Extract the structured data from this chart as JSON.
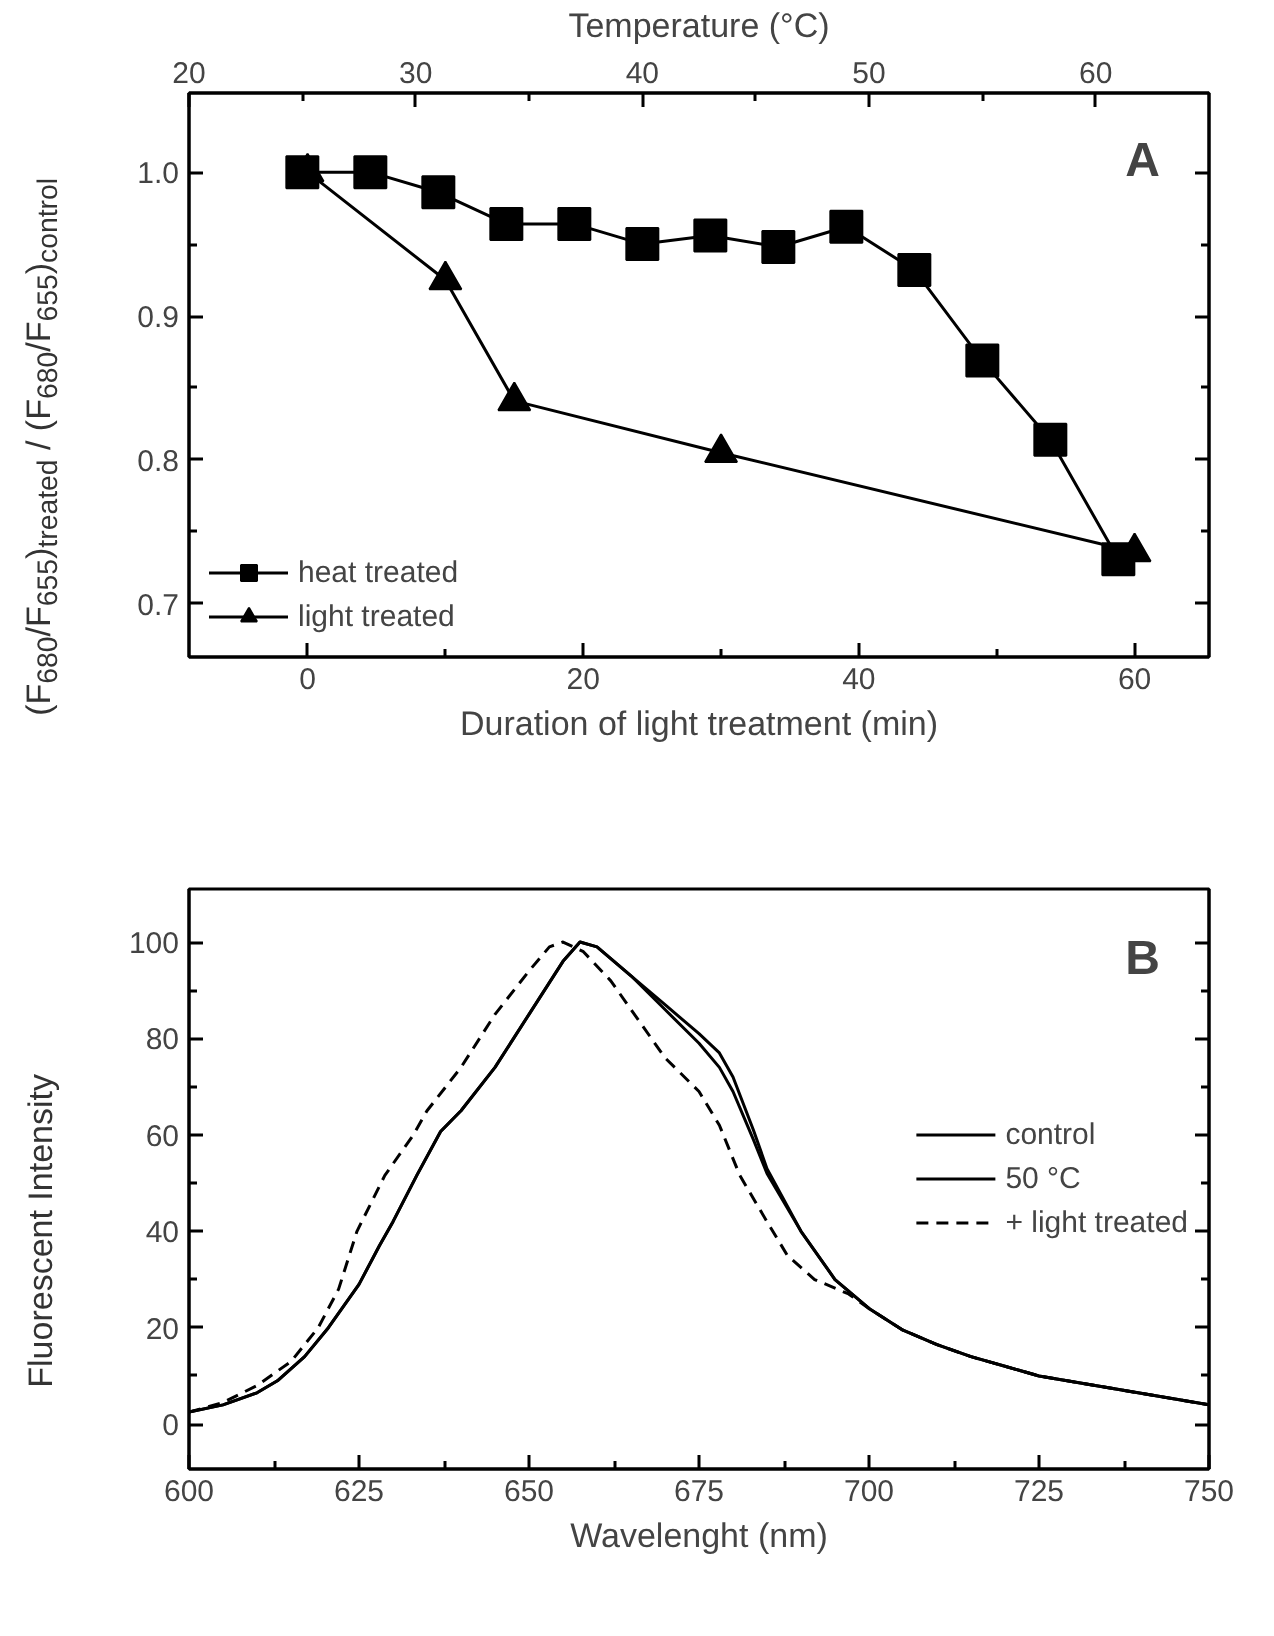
{
  "chart_data": [
    {
      "type": "line",
      "xlabel": "Duration of light treatment (min)",
      "x2label": "Temperature (°C)",
      "ylabel": "(F$_{680}$/F$_{655}$)$_{treated}$ / (F$_{680}$/F$_{655}$)$_{control}$",
      "xlim": [
        -8.6,
        65.4
      ],
      "xticks": [
        0,
        {
          "value": 10,
          "label": null
        },
        20,
        {
          "value": 30,
          "label": null
        },
        40,
        {
          "value": 50,
          "label": null
        },
        60
      ],
      "x2lim": [
        20,
        65
      ],
      "x2ticks": [
        20,
        {
          "value": 25,
          "label": null
        },
        30,
        {
          "value": 35,
          "label": null
        },
        40,
        {
          "value": 45,
          "label": null
        },
        50,
        {
          "value": 55,
          "label": null
        },
        60
      ],
      "ylim": [
        0.663,
        1.055
      ],
      "yticks": [
        {
          "value": 0.7,
          "label": "0.7"
        },
        {
          "value": 0.75,
          "label": null
        },
        {
          "value": 0.8,
          "label": "0.8"
        },
        {
          "value": 0.85,
          "label": null
        },
        {
          "value": 0.9,
          "label": "0.9"
        },
        {
          "value": 0.95,
          "label": null
        },
        {
          "value": 1.0,
          "label": "1.0"
        }
      ],
      "grid": false,
      "legend": "bottom left",
      "annotations": [
        {
          "text": "A"
        }
      ],
      "series": [
        {
          "name": "heat treated",
          "color": "#000000",
          "marker": "square",
          "axis": "x2",
          "x": [
            25,
            28,
            31,
            34,
            37,
            40,
            43,
            46,
            49,
            52,
            55,
            58,
            61
          ],
          "values": [
            1.0,
            1.0,
            0.986,
            0.964,
            0.964,
            0.95,
            0.956,
            0.948,
            0.962,
            0.932,
            0.869,
            0.814,
            0.731
          ]
        },
        {
          "name": "light treated",
          "color": "#000000",
          "marker": "triangle",
          "x": [
            0,
            10,
            15,
            30,
            60
          ],
          "values": [
            1.0,
            0.925,
            0.841,
            0.805,
            0.736
          ]
        }
      ]
    },
    {
      "type": "line",
      "xlabel": "Wavelenght (nm)",
      "ylabel": "Fluorescent Intensity",
      "xlim": [
        600,
        750
      ],
      "xticks": [
        600,
        {
          "value": 612.5,
          "label": null
        },
        625,
        {
          "value": 637.5,
          "label": null
        },
        650,
        {
          "value": 662.5,
          "label": null
        },
        675,
        {
          "value": 687.5,
          "label": null
        },
        700,
        {
          "value": 712.5,
          "label": null
        },
        725,
        {
          "value": 737.5,
          "label": null
        },
        750
      ],
      "ylim": [
        -9.3,
        111
      ],
      "yticks": [
        0,
        {
          "value": 10,
          "label": null
        },
        20,
        {
          "value": 30,
          "label": null
        },
        40,
        {
          "value": 50,
          "label": null
        },
        60,
        {
          "value": 70,
          "label": null
        },
        80,
        {
          "value": 90,
          "label": null
        },
        100
      ],
      "grid": false,
      "legend": "right",
      "annotations": [
        {
          "text": "B"
        }
      ],
      "series": [
        {
          "name": "control",
          "color": "#000000",
          "line_style": "solid",
          "x": [
            600,
            605,
            610,
            613,
            617,
            620.5,
            625,
            628,
            630,
            633.5,
            637,
            640,
            645,
            650,
            655,
            657.5,
            660,
            665,
            670,
            675,
            678,
            680,
            683,
            685,
            690,
            695,
            700,
            705,
            710,
            715,
            720,
            725,
            730,
            735,
            740,
            745,
            750
          ],
          "values": [
            2.5,
            4,
            6.5,
            9,
            14,
            20,
            29,
            37,
            42,
            51.6,
            60.7,
            65,
            74,
            85,
            96,
            100,
            99,
            93,
            87,
            81,
            77,
            72,
            61,
            53,
            40,
            30,
            24,
            19.5,
            16.5,
            14,
            12,
            10,
            8.8,
            7.6,
            6.4,
            5.2,
            4
          ]
        },
        {
          "name": "50 °C",
          "color": "#000000",
          "line_style": "solid",
          "x": [
            600,
            605,
            610,
            613,
            617,
            620.5,
            625,
            628,
            630,
            633.5,
            637,
            640,
            645,
            650,
            655,
            657.5,
            660,
            665,
            670,
            675,
            678,
            680,
            683,
            685,
            690,
            695,
            700,
            705,
            710,
            715,
            720,
            725,
            730,
            735,
            740,
            745,
            750
          ],
          "values": [
            2.5,
            4,
            6.5,
            9,
            14,
            20,
            29,
            37,
            42,
            51.6,
            60.7,
            65,
            74,
            85,
            96,
            100,
            99,
            93,
            86,
            79,
            74,
            69,
            59,
            52,
            40,
            30,
            24,
            19.5,
            16.5,
            14,
            12,
            10,
            8.8,
            7.6,
            6.4,
            5.2,
            4
          ]
        },
        {
          "name": "+ light treated",
          "color": "#000000",
          "line_style": "dashed",
          "x": [
            600,
            605,
            610,
            615,
            619,
            622,
            624.7,
            628.8,
            633,
            635,
            640,
            645,
            650,
            653,
            655,
            658,
            662,
            665,
            670,
            675,
            678,
            681,
            685,
            688,
            692,
            697,
            700,
            705,
            710,
            715,
            720,
            725,
            730,
            735,
            740,
            745,
            750
          ],
          "values": [
            2.5,
            4.5,
            8,
            13,
            20,
            28,
            40,
            51.6,
            60,
            65,
            74,
            85,
            94,
            99,
            100,
            98,
            92,
            86,
            76,
            69,
            62,
            51.6,
            42,
            35,
            30,
            27,
            24,
            19.5,
            16.5,
            14,
            12,
            10,
            8.8,
            7.6,
            6.4,
            5.2,
            4
          ]
        }
      ]
    }
  ]
}
